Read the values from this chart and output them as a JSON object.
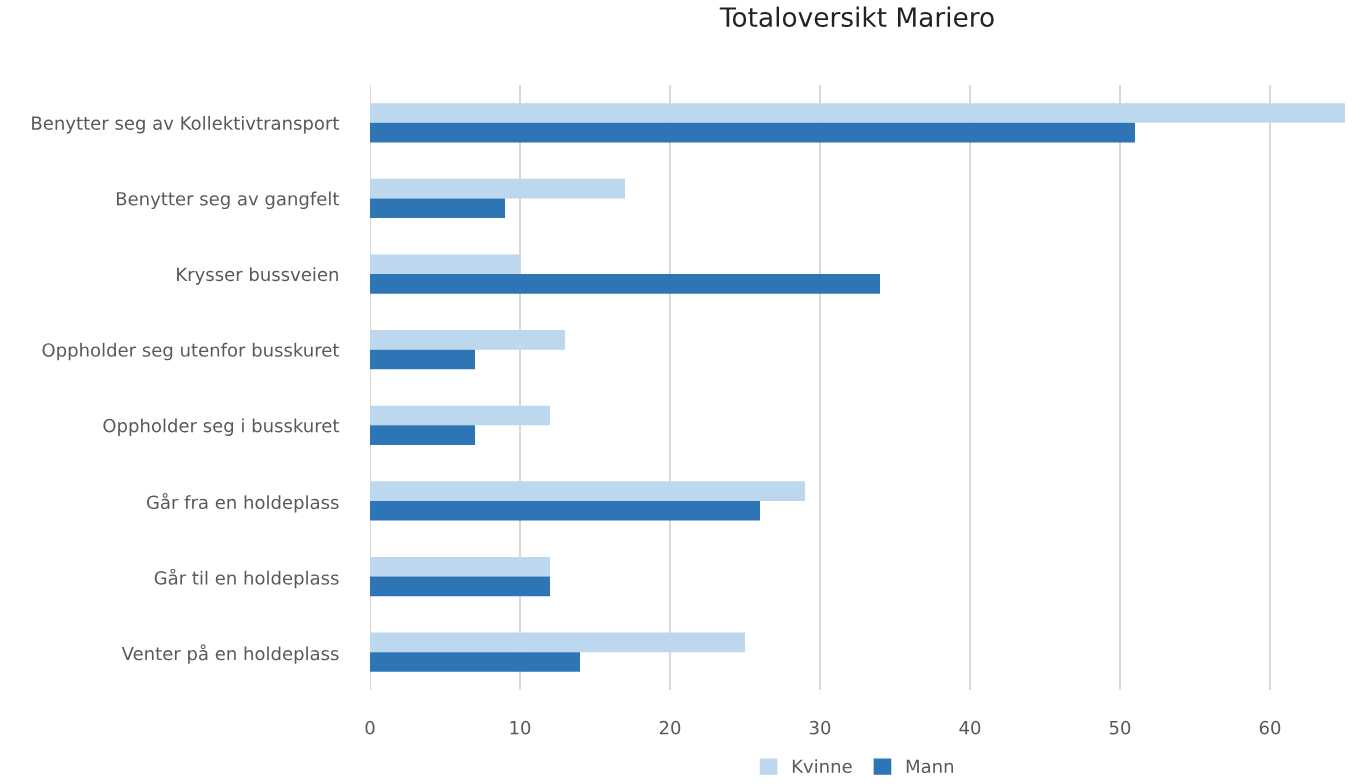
{
  "chart_data": {
    "type": "bar",
    "orientation": "horizontal",
    "title": "Totaloversikt Mariero",
    "categories": [
      "Benytter seg av Kollektivtransport",
      "Benytter seg av gangfelt",
      "Krysser bussveien",
      "Oppholder seg utenfor busskuret",
      "Oppholder seg i busskuret",
      "Går fra en holdeplass",
      "Går til en holdeplass",
      "Venter på en holdeplass"
    ],
    "series": [
      {
        "name": "Kvinne",
        "color": "#bdd7ee",
        "values": [
          65,
          17,
          10,
          13,
          12,
          29,
          12,
          25
        ]
      },
      {
        "name": "Mann",
        "color": "#2e75b6",
        "values": [
          51,
          9,
          34,
          7,
          7,
          26,
          12,
          14
        ]
      }
    ],
    "xlim": [
      0,
      65
    ],
    "xticks": [
      0,
      10,
      20,
      30,
      40,
      50,
      60
    ],
    "grid": "x",
    "legend": "bottom"
  }
}
